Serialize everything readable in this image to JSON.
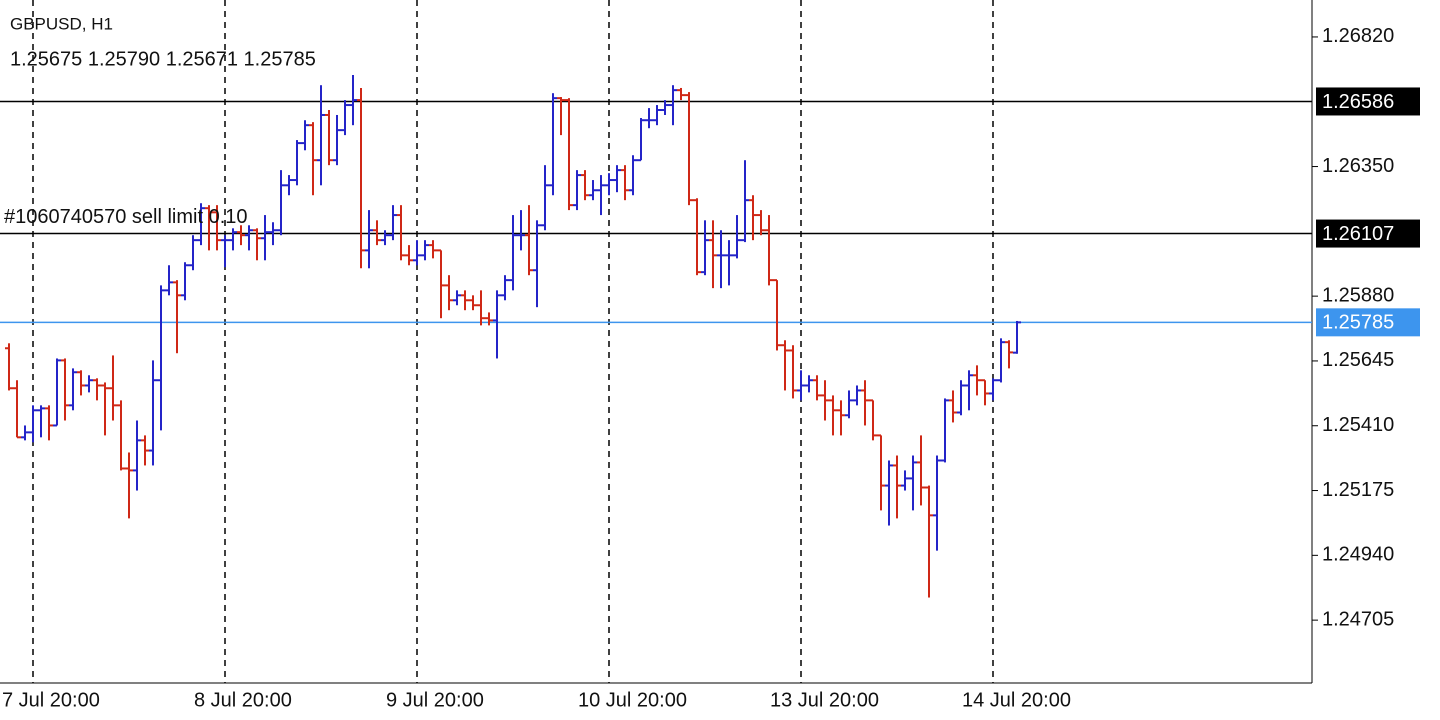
{
  "header": {
    "symbol": "GBPUSD, H1",
    "ohlc": "1.25675 1.25790 1.25671 1.25785"
  },
  "chart_data": {
    "type": "ohlc",
    "categories": [
      null,
      null,
      null,
      "7 Jul 20:00",
      null,
      null,
      null,
      null,
      null,
      null,
      null,
      null,
      null,
      null,
      null,
      null,
      null,
      null,
      null,
      null,
      null,
      null,
      null,
      null,
      null,
      null,
      null,
      "8 Jul 20:00",
      null,
      null,
      null,
      null,
      null,
      null,
      null,
      null,
      null,
      null,
      null,
      null,
      null,
      null,
      null,
      null,
      null,
      null,
      null,
      null,
      null,
      null,
      null,
      "9 Jul 20:00",
      null,
      null,
      null,
      null,
      null,
      null,
      null,
      null,
      null,
      null,
      null,
      null,
      null,
      null,
      null,
      null,
      null,
      null,
      null,
      null,
      null,
      null,
      null,
      "10 Jul 20:00",
      null,
      null,
      null,
      null,
      null,
      null,
      null,
      null,
      null,
      null,
      null,
      null,
      null,
      null,
      null,
      null,
      null,
      null,
      null,
      null,
      null,
      null,
      null,
      "13 Jul 20:00",
      null,
      null,
      null,
      null,
      null,
      null,
      null,
      null,
      null,
      null,
      null,
      null,
      null,
      null,
      null,
      null,
      null,
      null,
      null,
      null,
      null,
      null,
      null,
      "14 Jul 20:00",
      null,
      null,
      null
    ],
    "open": [
      1.25691,
      1.25546,
      1.25368,
      1.25386,
      1.25466,
      1.25473,
      1.25411,
      1.25647,
      1.25484,
      1.25604,
      1.25556,
      1.25575,
      1.25556,
      1.25546,
      1.25484,
      1.25255,
      1.25248,
      1.25357,
      1.2532,
      1.25575,
      1.25901,
      1.2593,
      1.25883,
      1.25992,
      1.26083,
      1.26199,
      1.26184,
      1.26083,
      1.26083,
      1.26112,
      1.26101,
      1.26119,
      1.2609,
      1.26112,
      1.26119,
      1.26282,
      1.26301,
      1.26435,
      1.265,
      1.26373,
      1.26537,
      1.26373,
      1.26482,
      1.26573,
      1.26591,
      1.26046,
      1.26119,
      1.26083,
      1.26101,
      1.26174,
      1.26028,
      1.2601,
      1.26028,
      1.26065,
      1.26046,
      1.25919,
      1.25865,
      1.25883,
      1.25865,
      1.25847,
      1.258,
      1.25792,
      1.25883,
      1.25938,
      1.26101,
      1.26101,
      1.25974,
      1.26137,
      1.26282,
      1.26598,
      1.26591,
      1.2621,
      1.26319,
      1.26246,
      1.26264,
      1.26282,
      1.26301,
      1.26337,
      1.26264,
      1.26373,
      1.26518,
      1.26518,
      1.26555,
      1.26573,
      1.26627,
      1.26609,
      1.26228,
      1.25967,
      1.26083,
      1.26028,
      1.26028,
      1.26028,
      1.26083,
      1.26228,
      1.26174,
      1.26119,
      1.25938,
      1.25702,
      1.25683,
      1.25538,
      1.25556,
      1.25575,
      1.2552,
      1.25502,
      1.25466,
      1.25448,
      1.25502,
      1.25538,
      1.25502,
      1.25375,
      1.25193,
      1.25266,
      1.25193,
      1.25219,
      1.25277,
      1.25186,
      1.25085,
      1.25284,
      1.25502,
      1.25458,
      1.25556,
      1.25593,
      1.25575,
      1.25527,
      1.25575,
      1.25713,
      1.25675
    ],
    "high": [
      1.25709,
      1.25575,
      1.25411,
      1.25484,
      1.25484,
      1.25484,
      1.25654,
      1.25654,
      1.25618,
      1.25611,
      1.25593,
      1.25582,
      1.25567,
      1.25665,
      1.25502,
      1.25313,
      1.25429,
      1.25375,
      1.25647,
      1.25919,
      1.25992,
      1.25938,
      1.26003,
      1.26101,
      1.26217,
      1.2621,
      1.2621,
      1.26101,
      1.26126,
      1.26137,
      1.26137,
      1.26126,
      1.26174,
      1.26148,
      1.26337,
      1.26319,
      1.26446,
      1.26518,
      1.26511,
      1.26645,
      1.26555,
      1.26537,
      1.26591,
      1.26682,
      1.26635,
      1.26192,
      1.26155,
      1.26119,
      1.2621,
      1.2621,
      1.26065,
      1.26083,
      1.26083,
      1.26083,
      1.26046,
      1.25956,
      1.25901,
      1.25901,
      1.25883,
      1.25901,
      1.25821,
      1.25901,
      1.25956,
      1.26174,
      1.26192,
      1.2621,
      1.26155,
      1.26355,
      1.26616,
      1.26602,
      1.26598,
      1.26337,
      1.26337,
      1.26301,
      1.26319,
      1.26326,
      1.26355,
      1.26355,
      1.26391,
      1.26526,
      1.26562,
      1.26573,
      1.26591,
      1.26645,
      1.26635,
      1.2662,
      1.26235,
      1.26155,
      1.26155,
      1.26119,
      1.26083,
      1.26174,
      1.26373,
      1.26246,
      1.26192,
      1.26174,
      1.25938,
      1.2572,
      1.25702,
      1.25611,
      1.25593,
      1.25593,
      1.25575,
      1.2552,
      1.25502,
      1.25538,
      1.25556,
      1.25575,
      1.25502,
      1.25375,
      1.25284,
      1.25302,
      1.25248,
      1.25302,
      1.25375,
      1.25193,
      1.25302,
      1.25509,
      1.25538,
      1.25575,
      1.25611,
      1.25629,
      1.25575,
      1.25582,
      1.25727,
      1.2572,
      1.2579
    ],
    "low": [
      1.25538,
      1.25368,
      1.25357,
      1.2535,
      1.25368,
      1.25357,
      1.25411,
      1.25429,
      1.25466,
      1.2552,
      1.25531,
      1.25502,
      1.25375,
      1.25429,
      1.25248,
      1.25074,
      1.25175,
      1.25266,
      1.25266,
      1.25393,
      1.25883,
      1.25673,
      1.25865,
      1.25974,
      1.26065,
      1.26046,
      1.26046,
      1.25985,
      1.26046,
      1.26065,
      1.26046,
      1.2601,
      1.2601,
      1.26065,
      1.26101,
      1.26246,
      1.26282,
      1.26409,
      1.26246,
      1.26282,
      1.26355,
      1.26355,
      1.26464,
      1.265,
      1.25981,
      1.25981,
      1.26065,
      1.26065,
      1.26083,
      1.2601,
      1.25992,
      1.25992,
      1.2601,
      1.26017,
      1.258,
      1.25829,
      1.25847,
      1.25829,
      1.25829,
      1.25774,
      1.25774,
      1.25654,
      1.25865,
      1.25901,
      1.26046,
      1.25956,
      1.2584,
      1.26119,
      1.26246,
      1.26464,
      1.26192,
      1.26192,
      1.26228,
      1.26228,
      1.26174,
      1.26246,
      1.26257,
      1.26228,
      1.26246,
      1.26373,
      1.26489,
      1.265,
      1.26537,
      1.265,
      1.26591,
      1.2621,
      1.25956,
      1.25956,
      1.25909,
      1.25909,
      1.25919,
      1.26017,
      1.26076,
      1.26083,
      1.26101,
      1.25919,
      1.25683,
      1.25538,
      1.25509,
      1.25502,
      1.25531,
      1.25502,
      1.25429,
      1.25375,
      1.25375,
      1.25437,
      1.25484,
      1.25411,
      1.25357,
      1.25103,
      1.25048,
      1.25074,
      1.25175,
      1.25103,
      1.25121,
      1.24787,
      1.24957,
      1.25277,
      1.25422,
      1.25448,
      1.25466,
      1.2552,
      1.25484,
      1.25502,
      1.25567,
      1.25618,
      1.25671
    ],
    "close": [
      1.25546,
      1.25368,
      1.25386,
      1.25466,
      1.25473,
      1.25411,
      1.25647,
      1.25484,
      1.25604,
      1.25556,
      1.25575,
      1.25556,
      1.25546,
      1.25484,
      1.25255,
      1.25248,
      1.25357,
      1.2532,
      1.25575,
      1.25901,
      1.2593,
      1.25883,
      1.25992,
      1.26083,
      1.26199,
      1.26184,
      1.26083,
      1.26083,
      1.26112,
      1.26101,
      1.26119,
      1.2609,
      1.26112,
      1.26119,
      1.26282,
      1.26301,
      1.26435,
      1.265,
      1.26373,
      1.26537,
      1.26373,
      1.26482,
      1.26573,
      1.26591,
      1.26046,
      1.26119,
      1.26083,
      1.26101,
      1.26174,
      1.26028,
      1.2601,
      1.26028,
      1.26065,
      1.26046,
      1.25919,
      1.25865,
      1.25883,
      1.25865,
      1.25847,
      1.258,
      1.25792,
      1.25883,
      1.25938,
      1.26101,
      1.26101,
      1.25974,
      1.26137,
      1.26282,
      1.26598,
      1.26591,
      1.2621,
      1.26319,
      1.26246,
      1.26264,
      1.26282,
      1.26301,
      1.26337,
      1.26264,
      1.26373,
      1.26518,
      1.26518,
      1.26555,
      1.26573,
      1.26627,
      1.26609,
      1.26228,
      1.25967,
      1.26083,
      1.26028,
      1.26028,
      1.26028,
      1.26083,
      1.26228,
      1.26174,
      1.26119,
      1.25938,
      1.25702,
      1.25683,
      1.25538,
      1.25556,
      1.25575,
      1.2552,
      1.25502,
      1.25466,
      1.25448,
      1.25502,
      1.25538,
      1.25502,
      1.25375,
      1.25193,
      1.25266,
      1.25193,
      1.25219,
      1.25277,
      1.25186,
      1.25085,
      1.25284,
      1.25502,
      1.25458,
      1.25556,
      1.25593,
      1.25575,
      1.25527,
      1.25575,
      1.25713,
      1.25676,
      1.25785
    ],
    "up_color": "#2424c8",
    "down_color": "#cf2816",
    "ylim": [
      1.24477,
      1.26954
    ],
    "yticks": [
      {
        "value": 1.2682,
        "label": "1.26820"
      },
      {
        "value": 1.2635,
        "label": "1.26350"
      },
      {
        "value": 1.2588,
        "label": "1.25880"
      },
      1.25645,
      {
        "value": 1.2541,
        "label": "1.25410"
      },
      1.25175,
      {
        "value": 1.2494,
        "label": "1.24940"
      },
      1.24705
    ],
    "grid": true,
    "levels": [
      {
        "value": 1.26586,
        "color": "#000000"
      },
      {
        "value": 1.26107,
        "color": "#000000",
        "annotation": "#1060740570 sell limit 0.10"
      },
      {
        "value": 1.25785,
        "color": "#3d95ee"
      }
    ]
  }
}
